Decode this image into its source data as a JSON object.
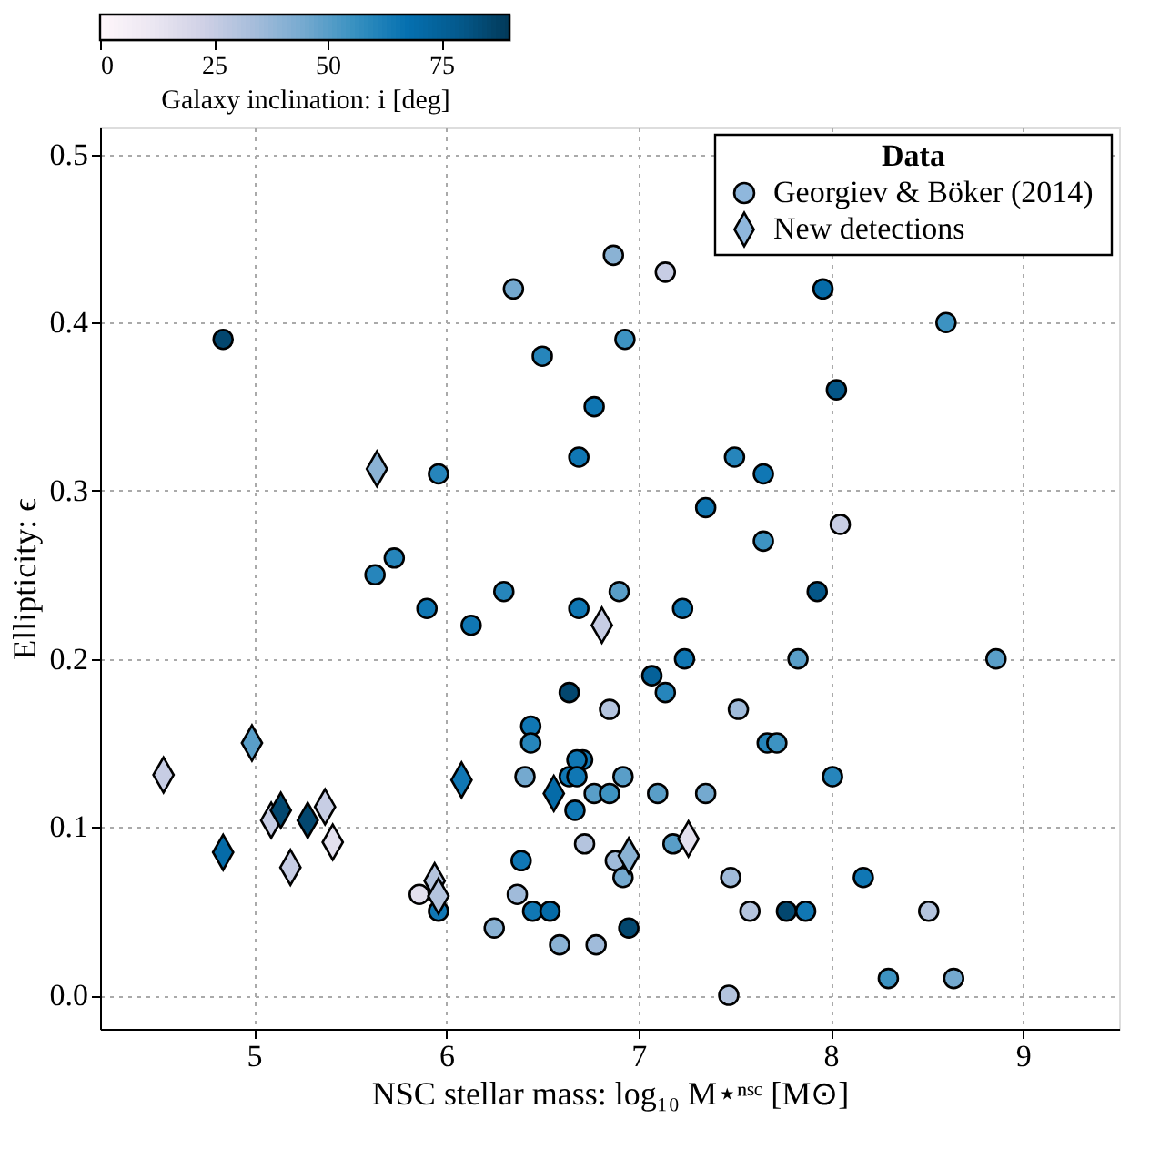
{
  "chart_data": {
    "type": "scatter",
    "xlabel": "NSC stellar mass: log₁₀ M⋆ⁿˢᶜ [M⊙]",
    "ylabel": "Ellipticity: ϵ",
    "legend_title": "Data",
    "clabel": "Galaxy inclination: i [deg]",
    "clim": [
      0,
      90
    ],
    "cticks": [
      0,
      25,
      50,
      75
    ],
    "xlim": [
      4.2,
      9.5
    ],
    "xticks": [
      5,
      6,
      7,
      8,
      9
    ],
    "ylim": [
      -0.02,
      0.516
    ],
    "yticks": [
      {
        "value": 0,
        "label": "0.0"
      },
      0.1,
      0.2,
      0.3,
      0.4,
      0.5
    ],
    "grid": true,
    "legend": "top right",
    "series": [
      {
        "name": "Georgiev & Böker (2014)",
        "type": "scatter",
        "marker": "circle",
        "x": [
          4.84,
          6.87,
          6.35,
          6.5,
          6.93,
          6.77,
          6.69,
          5.96,
          5.73,
          5.63,
          7.14,
          7.96,
          8.6,
          8.03,
          7.5,
          7.65,
          7.35,
          8.05,
          7.65,
          5.9,
          6.13,
          6.3,
          6.69,
          6.9,
          6.64,
          6.85,
          6.44,
          6.44,
          6.71,
          6.68,
          6.41,
          6.64,
          6.68,
          6.92,
          6.77,
          6.85,
          6.67,
          6.72,
          6.39,
          6.37,
          5.86,
          5.96,
          6.45,
          6.54,
          6.25,
          6.59,
          6.78,
          6.95,
          6.88,
          6.92,
          7.93,
          7.23,
          7.24,
          7.83,
          8.86,
          7.07,
          7.14,
          7.52,
          7.67,
          7.72,
          8.01,
          7.1,
          7.35,
          7.18,
          7.48,
          8.17,
          7.58,
          7.77,
          7.87,
          8.51,
          8.3,
          8.64,
          7.47
        ],
        "values": [
          0.39,
          0.44,
          0.42,
          0.38,
          0.39,
          0.35,
          0.32,
          0.31,
          0.26,
          0.25,
          0.43,
          0.42,
          0.4,
          0.36,
          0.32,
          0.31,
          0.29,
          0.28,
          0.27,
          0.23,
          0.22,
          0.24,
          0.23,
          0.24,
          0.18,
          0.17,
          0.16,
          0.15,
          0.14,
          0.14,
          0.13,
          0.13,
          0.13,
          0.13,
          0.12,
          0.12,
          0.11,
          0.09,
          0.08,
          0.06,
          0.06,
          0.05,
          0.05,
          0.05,
          0.04,
          0.03,
          0.03,
          0.04,
          0.08,
          0.07,
          0.24,
          0.23,
          0.2,
          0.2,
          0.2,
          0.19,
          0.18,
          0.17,
          0.15,
          0.15,
          0.13,
          0.12,
          0.12,
          0.09,
          0.07,
          0.07,
          0.05,
          0.05,
          0.05,
          0.05,
          0.01,
          0.01,
          0.0
        ],
        "colors": [
          "#03476f",
          "#8ab2d4",
          "#74a9cf",
          "#2685bb",
          "#3d93c2",
          "#1077b4",
          "#1077b4",
          "#2685bb",
          "#2685bb",
          "#2685bb",
          "#c7cde4",
          "#056ba8",
          "#3d93c2",
          "#045687",
          "#2685bb",
          "#1077b4",
          "#1077b4",
          "#c7cde4",
          "#3d93c2",
          "#1077b4",
          "#1077b4",
          "#2685bb",
          "#1077b4",
          "#599ec8",
          "#03476f",
          "#b4c4de",
          "#1077b4",
          "#2685bb",
          "#1077b4",
          "#1077b4",
          "#74a9cf",
          "#1077b4",
          "#1077b4",
          "#599ec8",
          "#599ec8",
          "#3d93c2",
          "#1077b4",
          "#b4c4de",
          "#1077b4",
          "#a0bbda",
          "#e3e0ee",
          "#1077b4",
          "#1077b4",
          "#056ba8",
          "#8ab2d4",
          "#8ab2d4",
          "#a0bbda",
          "#03476f",
          "#a0bbda",
          "#74a9cf",
          "#045687",
          "#1077b4",
          "#1077b4",
          "#599ec8",
          "#599ec8",
          "#046199",
          "#2685bb",
          "#a0bbda",
          "#2685bb",
          "#3d93c2",
          "#2685bb",
          "#599ec8",
          "#74a9cf",
          "#599ec8",
          "#a0bbda",
          "#1077b4",
          "#b4c4de",
          "#03476f",
          "#1077b4",
          "#b4c4de",
          "#3d93c2",
          "#74a9cf",
          "#b4c4de"
        ]
      },
      {
        "name": "New detections",
        "type": "scatter",
        "marker": "diamond",
        "x": [
          5.64,
          6.81,
          6.08,
          6.56,
          4.53,
          4.99,
          4.84,
          5.09,
          5.14,
          5.28,
          5.37,
          5.41,
          5.19,
          5.94,
          5.96,
          6.95,
          7.26
        ],
        "values": [
          0.313,
          0.22,
          0.128,
          0.12,
          0.131,
          0.15,
          0.085,
          0.104,
          0.11,
          0.104,
          0.112,
          0.091,
          0.076,
          0.068,
          0.059,
          0.083,
          0.093
        ],
        "colors": [
          "#8ab2d4",
          "#c7cde4",
          "#1077b4",
          "#056ba8",
          "#c7cde4",
          "#599ec8",
          "#056ba8",
          "#c7cde4",
          "#03476f",
          "#03476f",
          "#c7cde4",
          "#e3e0ee",
          "#c7cde4",
          "#b4c4de",
          "#b4c4de",
          "#8ab2d4",
          "#e3e0ee"
        ]
      }
    ]
  }
}
